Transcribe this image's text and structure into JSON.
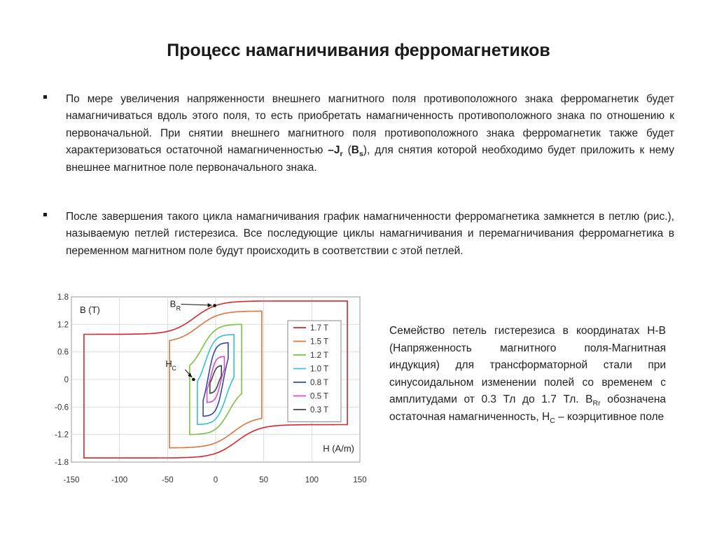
{
  "slide": {
    "title": "Процесс намагничивания ферромагнетиков"
  },
  "bullets": [
    {
      "parts": [
        {
          "t": "По мере увеличения напряженности внешнего магнитного поля противоположного знака ферромагнетик будет намагничиваться вдоль этого поля, то есть приобретать намагниченность противоположного знака по отношению к первоначальной. При снятии внешнего магнитного поля противоположного знака ферромагнетик также будет характеризоваться остаточной намагниченностью ",
          "s": "n"
        },
        {
          "t": "–J",
          "s": "b"
        },
        {
          "t": "r",
          "s": "bsub"
        },
        {
          "t": " (",
          "s": "n"
        },
        {
          "t": "B",
          "s": "b"
        },
        {
          "t": "s",
          "s": "bsub"
        },
        {
          "t": "), для снятия которой необходимо будет приложить к нему внешнее магнитное поле первоначального знака.",
          "s": "n"
        }
      ]
    },
    {
      "parts": [
        {
          "t": "После завершения такого цикла намагничивания график намагниченности ферромагнетика замкнется в петлю (рис.), называемую петлей гистерезиса. Все последующие циклы намагничивания и перемагничивания ферромагнетика в переменном магнитном поле будут происходить в соответствии с этой петлей.",
          "s": "n"
        }
      ]
    }
  ],
  "caption": {
    "parts": [
      {
        "t": "Семейство петель гистерезиса в координатах H-B (Напряженность магнитного поля-Магнитная индукция) для трансформаторной стали при синусоидальном изменении полей со временем с амплитудами от 0.3 Тл до 1.7 Тл. B",
        "s": "n"
      },
      {
        "t": "Rr",
        "s": "sub"
      },
      {
        "t": " обозначена остаточная намагниченность, H",
        "s": "n"
      },
      {
        "t": "C",
        "s": "sub"
      },
      {
        "t": " – коэрцитивное поле",
        "s": "n"
      }
    ]
  },
  "chart_data": {
    "type": "line",
    "ylabel": "B (T)",
    "xlabel": "H (A/m)",
    "xlim": [
      -150,
      150
    ],
    "ylim": [
      -1.8,
      1.8
    ],
    "xticks": [
      -150,
      -100,
      -50,
      0,
      50,
      100,
      150
    ],
    "xtick_labels": [
      "-150",
      "-100",
      "-50",
      "0",
      "50",
      "100",
      "150"
    ],
    "yticks": [
      1.8,
      1.2,
      0.6,
      0,
      -0.6,
      -1.2,
      -1.8
    ],
    "ytick_labels": [
      "1.8",
      "1.2",
      "0.6",
      "0",
      "-0.6",
      "-1.2",
      "-1.8"
    ],
    "legend_position": "right",
    "annotations": [
      {
        "label": "B",
        "sub": "R",
        "x": -1,
        "y": 1.61
      },
      {
        "label": "H",
        "sub": "C",
        "x": -23,
        "y": 0.0
      }
    ],
    "series": [
      {
        "name": "1.7 T",
        "color": "#d62728",
        "hmax": 137,
        "bmax": 1.71,
        "hc": 22,
        "br": 1.61,
        "hk": 24
      },
      {
        "name": "1.5 T",
        "color": "#e0733a",
        "hmax": 48,
        "bmax": 1.49,
        "hc": 18,
        "br": 1.38,
        "hk": 22
      },
      {
        "name": "1.2 T",
        "color": "#7cc142",
        "hmax": 27,
        "bmax": 1.2,
        "hc": 14,
        "br": 1.08,
        "hk": 14
      },
      {
        "name": "1.0 T",
        "color": "#32c4d0",
        "hmax": 19,
        "bmax": 0.98,
        "hc": 11,
        "br": 0.86,
        "hk": 10
      },
      {
        "name": "0.8 T",
        "color": "#3347b5",
        "hmax": 13,
        "bmax": 0.8,
        "hc": 8,
        "br": 0.66,
        "hk": 7
      },
      {
        "name": "0.5 T",
        "color": "#d24fc4",
        "hmax": 9,
        "bmax": 0.5,
        "hc": 5,
        "br": 0.4,
        "hk": 5
      },
      {
        "name": "0.3 T",
        "color": "#444444",
        "hmax": 6,
        "bmax": 0.3,
        "hc": 3,
        "br": 0.22,
        "hk": 4
      }
    ]
  }
}
